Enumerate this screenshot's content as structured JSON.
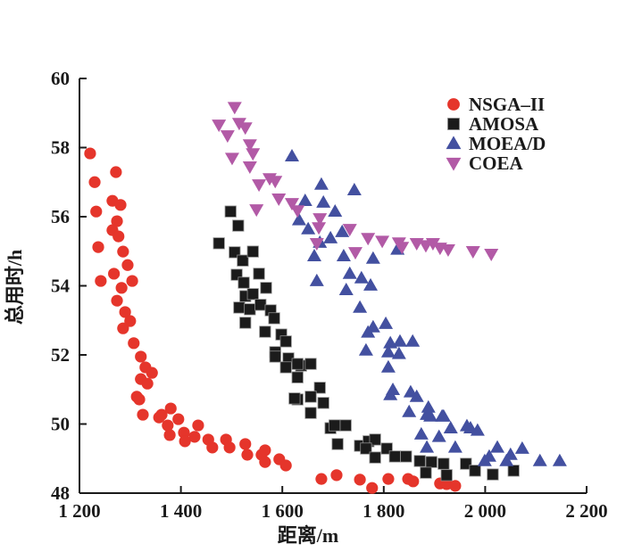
{
  "figure": {
    "background": "#ffffff",
    "text_color": "#1a1a1a",
    "axis_color": "#1a1a1a"
  },
  "chart_data": {
    "type": "scatter",
    "title": "",
    "xlabel": "距离/m",
    "ylabel": "总用时/h",
    "xlim": [
      1200,
      2200
    ],
    "ylim": [
      48,
      60
    ],
    "grid": false,
    "legend_position": "upper-right-inside",
    "xticks": {
      "values": [
        1200,
        1400,
        1600,
        1800,
        2000,
        2200
      ],
      "labels": [
        "1 200",
        "1 400",
        "1 600",
        "1 800",
        "2 000",
        "2 200"
      ]
    },
    "yticks": {
      "values": [
        48,
        50,
        52,
        54,
        56,
        58,
        60
      ],
      "labels": [
        "48",
        "50",
        "52",
        "54",
        "56",
        "58",
        "60"
      ]
    },
    "series": [
      {
        "name": "NSGA–II",
        "marker": "circle",
        "color": "#e5352b",
        "points": [
          [
            1221,
            57.83
          ],
          [
            1230,
            57.0
          ],
          [
            1272,
            57.29
          ],
          [
            1265,
            56.46
          ],
          [
            1281,
            56.34
          ],
          [
            1233,
            56.15
          ],
          [
            1274,
            55.87
          ],
          [
            1265,
            55.61
          ],
          [
            1277,
            55.43
          ],
          [
            1237,
            55.12
          ],
          [
            1286,
            54.99
          ],
          [
            1295,
            54.6
          ],
          [
            1268,
            54.35
          ],
          [
            1242,
            54.14
          ],
          [
            1304,
            54.14
          ],
          [
            1283,
            53.94
          ],
          [
            1274,
            53.57
          ],
          [
            1290,
            53.24
          ],
          [
            1300,
            52.98
          ],
          [
            1286,
            52.77
          ],
          [
            1307,
            52.34
          ],
          [
            1321,
            51.95
          ],
          [
            1330,
            51.64
          ],
          [
            1343,
            51.48
          ],
          [
            1321,
            51.3
          ],
          [
            1334,
            51.17
          ],
          [
            1313,
            50.79
          ],
          [
            1318,
            50.71
          ],
          [
            1325,
            50.27
          ],
          [
            1357,
            50.19
          ],
          [
            1362,
            50.27
          ],
          [
            1380,
            50.45
          ],
          [
            1395,
            50.14
          ],
          [
            1374,
            49.96
          ],
          [
            1406,
            49.75
          ],
          [
            1427,
            49.63
          ],
          [
            1378,
            49.68
          ],
          [
            1408,
            49.5
          ],
          [
            1434,
            49.96
          ],
          [
            1454,
            49.55
          ],
          [
            1462,
            49.32
          ],
          [
            1489,
            49.55
          ],
          [
            1496,
            49.32
          ],
          [
            1527,
            49.42
          ],
          [
            1531,
            49.11
          ],
          [
            1559,
            49.11
          ],
          [
            1566,
            49.24
          ],
          [
            1566,
            48.9
          ],
          [
            1594,
            48.98
          ],
          [
            1607,
            48.8
          ],
          [
            1677,
            48.41
          ],
          [
            1707,
            48.52
          ],
          [
            1753,
            48.39
          ],
          [
            1777,
            48.15
          ],
          [
            1809,
            48.41
          ],
          [
            1848,
            48.41
          ],
          [
            1858,
            48.34
          ],
          [
            1911,
            48.28
          ],
          [
            1924,
            48.26
          ],
          [
            1941,
            48.21
          ]
        ]
      },
      {
        "name": "AMOSA",
        "marker": "square",
        "color": "#1b1b1b",
        "points": [
          [
            1498,
            56.15
          ],
          [
            1513,
            55.74
          ],
          [
            1475,
            55.23
          ],
          [
            1506,
            54.97
          ],
          [
            1522,
            54.73
          ],
          [
            1542,
            54.99
          ],
          [
            1510,
            54.32
          ],
          [
            1524,
            54.09
          ],
          [
            1554,
            54.35
          ],
          [
            1527,
            53.7
          ],
          [
            1542,
            53.76
          ],
          [
            1568,
            53.94
          ],
          [
            1515,
            53.37
          ],
          [
            1536,
            53.32
          ],
          [
            1557,
            53.45
          ],
          [
            1577,
            53.29
          ],
          [
            1527,
            52.93
          ],
          [
            1584,
            53.06
          ],
          [
            1566,
            52.67
          ],
          [
            1598,
            52.59
          ],
          [
            1586,
            52.08
          ],
          [
            1612,
            51.9
          ],
          [
            1637,
            51.69
          ],
          [
            1607,
            52.39
          ],
          [
            1586,
            51.95
          ],
          [
            1607,
            51.64
          ],
          [
            1630,
            51.74
          ],
          [
            1656,
            51.74
          ],
          [
            1630,
            51.35
          ],
          [
            1674,
            51.05
          ],
          [
            1630,
            50.71
          ],
          [
            1656,
            50.79
          ],
          [
            1681,
            50.61
          ],
          [
            1656,
            50.32
          ],
          [
            1624,
            50.74
          ],
          [
            1695,
            49.88
          ],
          [
            1703,
            49.96
          ],
          [
            1725,
            49.96
          ],
          [
            1709,
            49.42
          ],
          [
            1753,
            49.37
          ],
          [
            1770,
            49.5
          ],
          [
            1783,
            49.55
          ],
          [
            1765,
            49.29
          ],
          [
            1806,
            49.29
          ],
          [
            1783,
            49.03
          ],
          [
            1822,
            49.06
          ],
          [
            1844,
            49.06
          ],
          [
            1871,
            48.93
          ],
          [
            1894,
            48.9
          ],
          [
            1918,
            48.85
          ],
          [
            1883,
            48.59
          ],
          [
            1924,
            48.52
          ],
          [
            1962,
            48.85
          ],
          [
            1980,
            48.65
          ],
          [
            2015,
            48.54
          ],
          [
            2056,
            48.65
          ]
        ]
      },
      {
        "name": "MOEA/D",
        "marker": "triangle-up",
        "color": "#4350a0",
        "points": [
          [
            1619,
            57.75
          ],
          [
            1677,
            56.93
          ],
          [
            1742,
            56.77
          ],
          [
            1645,
            56.46
          ],
          [
            1681,
            56.41
          ],
          [
            1704,
            56.15
          ],
          [
            1633,
            55.9
          ],
          [
            1651,
            55.64
          ],
          [
            1718,
            55.56
          ],
          [
            1695,
            55.38
          ],
          [
            1674,
            55.25
          ],
          [
            1663,
            54.86
          ],
          [
            1721,
            54.86
          ],
          [
            1779,
            54.79
          ],
          [
            1827,
            55.05
          ],
          [
            1668,
            54.14
          ],
          [
            1733,
            54.35
          ],
          [
            1756,
            54.22
          ],
          [
            1774,
            54.01
          ],
          [
            1726,
            53.88
          ],
          [
            1753,
            53.37
          ],
          [
            1769,
            52.65
          ],
          [
            1765,
            52.13
          ],
          [
            1779,
            52.8
          ],
          [
            1804,
            52.9
          ],
          [
            1813,
            52.34
          ],
          [
            1832,
            52.39
          ],
          [
            1857,
            52.39
          ],
          [
            1809,
            52.08
          ],
          [
            1830,
            52.03
          ],
          [
            1809,
            51.64
          ],
          [
            1818,
            50.99
          ],
          [
            1853,
            50.92
          ],
          [
            1865,
            50.79
          ],
          [
            1850,
            50.35
          ],
          [
            1888,
            50.48
          ],
          [
            1892,
            50.22
          ],
          [
            1915,
            50.22
          ],
          [
            1932,
            49.88
          ],
          [
            1964,
            49.94
          ],
          [
            1813,
            50.84
          ],
          [
            1885,
            50.27
          ],
          [
            1918,
            50.22
          ],
          [
            1874,
            49.7
          ],
          [
            1909,
            49.63
          ],
          [
            1971,
            49.88
          ],
          [
            1985,
            49.81
          ],
          [
            1885,
            49.32
          ],
          [
            1941,
            49.32
          ],
          [
            1999,
            48.93
          ],
          [
            2008,
            49.06
          ],
          [
            2024,
            49.32
          ],
          [
            2042,
            48.93
          ],
          [
            2050,
            49.11
          ],
          [
            2073,
            49.29
          ],
          [
            2108,
            48.93
          ],
          [
            2147,
            48.93
          ]
        ]
      },
      {
        "name": "COEA",
        "marker": "triangle-down",
        "color": "#b25aa6",
        "points": [
          [
            1506,
            59.17
          ],
          [
            1475,
            58.66
          ],
          [
            1515,
            58.71
          ],
          [
            1492,
            58.35
          ],
          [
            1527,
            58.58
          ],
          [
            1536,
            58.09
          ],
          [
            1501,
            57.7
          ],
          [
            1542,
            57.83
          ],
          [
            1536,
            57.45
          ],
          [
            1575,
            57.11
          ],
          [
            1554,
            56.93
          ],
          [
            1586,
            57.03
          ],
          [
            1549,
            56.21
          ],
          [
            1593,
            56.52
          ],
          [
            1619,
            56.39
          ],
          [
            1630,
            56.18
          ],
          [
            1674,
            55.95
          ],
          [
            1672,
            55.69
          ],
          [
            1733,
            55.64
          ],
          [
            1769,
            55.38
          ],
          [
            1668,
            55.23
          ],
          [
            1797,
            55.3
          ],
          [
            1830,
            55.25
          ],
          [
            1836,
            55.12
          ],
          [
            1865,
            55.23
          ],
          [
            1883,
            55.17
          ],
          [
            1744,
            54.97
          ],
          [
            1897,
            55.23
          ],
          [
            1911,
            55.1
          ],
          [
            1927,
            55.05
          ],
          [
            1976,
            55.0
          ],
          [
            2012,
            54.92
          ]
        ]
      }
    ]
  }
}
